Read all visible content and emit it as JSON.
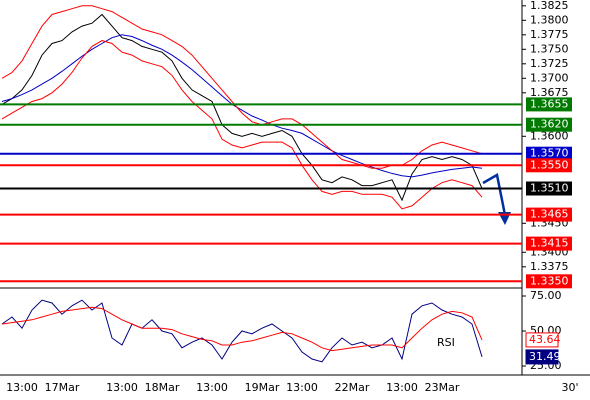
{
  "chart_data": [
    {
      "type": "line",
      "categories": [
        null,
        null,
        "13:00",
        null,
        null,
        null,
        "17Mar",
        null,
        null,
        null,
        null,
        null,
        "13:00",
        null,
        null,
        null,
        "18Mar",
        null,
        null,
        null,
        null,
        "13:00",
        null,
        null,
        null,
        null,
        "19Mar",
        null,
        null,
        null,
        "13:00",
        null,
        null,
        null,
        null,
        "22Mar",
        null,
        null,
        null,
        null,
        "13:00",
        null,
        null,
        null,
        "23Mar",
        null,
        null,
        null,
        null
      ],
      "timeframe": "30'",
      "ylim": [
        1.3335,
        1.3835
      ],
      "yticks": [
        {
          "value": 1.3825,
          "label": "1.3825"
        },
        {
          "value": 1.38,
          "label": "1.3800"
        },
        {
          "value": 1.3775,
          "label": "1.3775"
        },
        {
          "value": 1.375,
          "label": "1.3750"
        },
        {
          "value": 1.3725,
          "label": "1.3725"
        },
        {
          "value": 1.37,
          "label": "1.3700"
        },
        {
          "value": 1.3675,
          "label": "1.3675"
        },
        {
          "value": 1.36,
          "label": "1.3600"
        },
        {
          "value": 1.345,
          "label": "1.3450"
        },
        {
          "value": 1.34,
          "label": "1.3400"
        },
        {
          "value": 1.3375,
          "label": "1.3375"
        }
      ],
      "levels": [
        {
          "value": 1.3655,
          "label": "1.3655",
          "color": "#007a00"
        },
        {
          "value": 1.362,
          "label": "1.3620",
          "color": "#007a00"
        },
        {
          "value": 1.357,
          "label": "1.3570",
          "color": "#0000c8"
        },
        {
          "value": 1.355,
          "label": "1.3550",
          "color": "#ff0000"
        },
        {
          "value": 1.351,
          "label": "1.3510",
          "color": "#000000"
        },
        {
          "value": 1.3465,
          "label": "1.3465",
          "color": "#ff0000"
        },
        {
          "value": 1.3415,
          "label": "1.3415",
          "color": "#ff0000"
        },
        {
          "value": 1.335,
          "label": "1.3350",
          "color": "#ff0000"
        }
      ],
      "series": [
        {
          "color": "#000000",
          "values": [
            1.3655,
            1.3665,
            1.368,
            1.3705,
            1.374,
            1.376,
            1.3765,
            1.378,
            1.379,
            1.3795,
            1.381,
            1.379,
            1.377,
            1.3765,
            1.3755,
            1.375,
            1.3745,
            1.373,
            1.37,
            1.368,
            1.367,
            1.366,
            1.362,
            1.3605,
            1.36,
            1.3605,
            1.36,
            1.3605,
            1.361,
            1.36,
            1.357,
            1.355,
            1.3525,
            1.352,
            1.353,
            1.3525,
            1.3515,
            1.3515,
            1.352,
            1.3525,
            1.349,
            1.3535,
            1.356,
            1.3565,
            1.356,
            1.3565,
            1.356,
            1.355,
            1.351
          ]
        },
        {
          "color": "#0000c8",
          "values": [
            1.366,
            1.3665,
            1.3672,
            1.368,
            1.369,
            1.37,
            1.3712,
            1.3725,
            1.3738,
            1.375,
            1.376,
            1.377,
            1.3775,
            1.3772,
            1.3765,
            1.3757,
            1.375,
            1.374,
            1.3728,
            1.3715,
            1.37,
            1.3685,
            1.367,
            1.3655,
            1.3645,
            1.3635,
            1.3628,
            1.362,
            1.3614,
            1.361,
            1.3605,
            1.3595,
            1.3585,
            1.3575,
            1.3567,
            1.356,
            1.3553,
            1.3547,
            1.3541,
            1.3536,
            1.3532,
            1.353,
            1.3533,
            1.3537,
            1.354,
            1.3543,
            1.3545,
            1.3547,
            1.3545
          ]
        },
        {
          "color": "#ff0000",
          "values": [
            1.37,
            1.371,
            1.373,
            1.376,
            1.379,
            1.381,
            1.3815,
            1.382,
            1.3825,
            1.3825,
            1.382,
            1.3815,
            1.3805,
            1.3795,
            1.3785,
            1.378,
            1.3775,
            1.3765,
            1.3755,
            1.374,
            1.372,
            1.37,
            1.368,
            1.366,
            1.364,
            1.3625,
            1.362,
            1.3625,
            1.363,
            1.363,
            1.362,
            1.3605,
            1.359,
            1.3575,
            1.356,
            1.3555,
            1.355,
            1.3545,
            1.3545,
            1.355,
            1.355,
            1.356,
            1.3575,
            1.3585,
            1.359,
            1.3585,
            1.358,
            1.3575,
            1.357
          ]
        },
        {
          "color": "#ff0000",
          "values": [
            1.363,
            1.364,
            1.365,
            1.366,
            1.3665,
            1.3675,
            1.369,
            1.371,
            1.3735,
            1.3755,
            1.3765,
            1.376,
            1.3745,
            1.374,
            1.373,
            1.3725,
            1.372,
            1.3705,
            1.368,
            1.366,
            1.3645,
            1.363,
            1.3595,
            1.3585,
            1.358,
            1.3585,
            1.359,
            1.359,
            1.359,
            1.358,
            1.355,
            1.3525,
            1.3505,
            1.35,
            1.3505,
            1.3505,
            1.35,
            1.35,
            1.35,
            1.3495,
            1.3475,
            1.348,
            1.3495,
            1.351,
            1.352,
            1.3525,
            1.352,
            1.3515,
            1.3495
          ]
        }
      ]
    },
    {
      "type": "line",
      "ylim": [
        20,
        80
      ],
      "yticks": [
        {
          "value": 75,
          "label": "75.00"
        },
        {
          "value": 50,
          "label": "50.00"
        },
        {
          "value": 25,
          "label": "25.00"
        }
      ],
      "series": [
        {
          "name": "RSI",
          "color": "#000080",
          "values": [
            55,
            60,
            52,
            65,
            72,
            70,
            62,
            68,
            72,
            65,
            70,
            45,
            40,
            55,
            52,
            58,
            50,
            48,
            38,
            42,
            45,
            40,
            30,
            42,
            50,
            48,
            52,
            55,
            50,
            45,
            35,
            30,
            28,
            38,
            45,
            40,
            42,
            38,
            40,
            45,
            30,
            62,
            68,
            70,
            65,
            62,
            60,
            55,
            31.49
          ]
        },
        {
          "color": "#ff0000",
          "values": [
            55,
            56,
            57,
            58,
            60,
            62,
            64,
            65,
            66,
            67,
            66,
            62,
            58,
            55,
            52,
            52,
            52,
            51,
            48,
            46,
            44,
            43,
            40,
            40,
            42,
            43,
            45,
            47,
            49,
            48,
            45,
            42,
            38,
            36,
            37,
            38,
            39,
            40,
            40,
            40,
            38,
            45,
            52,
            58,
            62,
            64,
            63,
            60,
            43.64
          ]
        }
      ]
    }
  ]
}
